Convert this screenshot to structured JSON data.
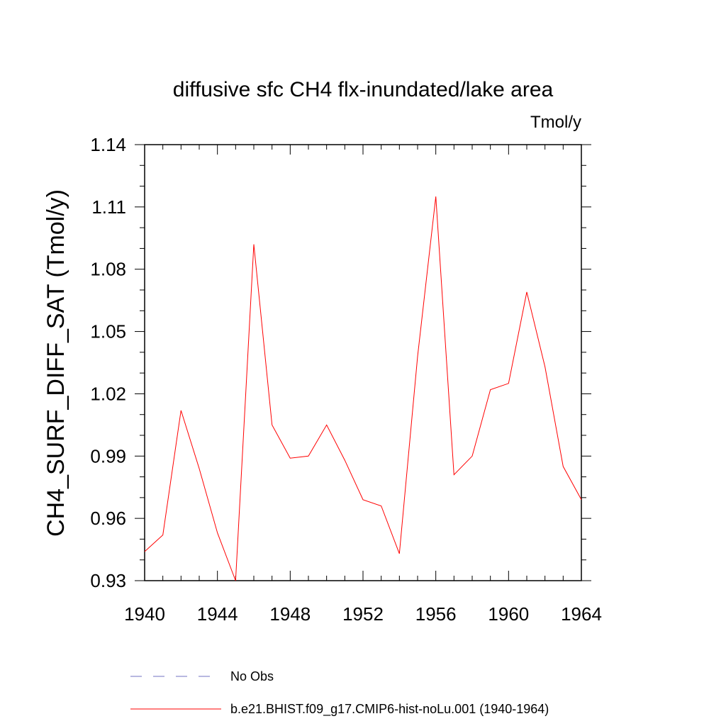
{
  "chart_data": {
    "type": "line",
    "title": "diffusive sfc CH4 flx-inundated/lake area",
    "units_label": "Tmol/y",
    "xlabel": "",
    "ylabel": "CH4_SURF_DIFF_SAT  (Tmol/y)",
    "xlim": [
      1940,
      1964
    ],
    "ylim": [
      0.93,
      1.14
    ],
    "x_ticks": [
      1940,
      1944,
      1948,
      1952,
      1956,
      1960,
      1964
    ],
    "x_tick_labels": [
      "1940",
      "1944",
      "1948",
      "1952",
      "1956",
      "1960",
      "1964"
    ],
    "x_minor_step": 1,
    "y_ticks": [
      0.93,
      0.96,
      0.99,
      1.02,
      1.05,
      1.08,
      1.11,
      1.14
    ],
    "y_tick_labels": [
      "0.93",
      "0.96",
      "0.99",
      "1.02",
      "1.05",
      "1.08",
      "1.11",
      "1.14"
    ],
    "y_minor_step": 0.01,
    "grid": false,
    "legend_position": "bottom",
    "series": [
      {
        "name": "b.e21.BHIST.f09_g17.CMIP6-hist-noLu.001 (1940-1964)",
        "color": "#ff0000",
        "style": "solid",
        "x": [
          1940,
          1941,
          1942,
          1943,
          1944,
          1945,
          1946,
          1947,
          1948,
          1949,
          1950,
          1951,
          1952,
          1953,
          1954,
          1955,
          1956,
          1957,
          1958,
          1959,
          1960,
          1961,
          1962,
          1963,
          1964
        ],
        "values": [
          0.944,
          0.952,
          1.012,
          0.984,
          0.953,
          0.93,
          1.092,
          1.005,
          0.989,
          0.99,
          1.005,
          0.988,
          0.969,
          0.966,
          0.943,
          1.038,
          1.115,
          0.981,
          0.99,
          1.022,
          1.025,
          1.069,
          1.033,
          0.985,
          0.969
        ]
      }
    ],
    "legend": [
      {
        "label": "No Obs",
        "color": "#7070c0",
        "style": "dashed"
      },
      {
        "label": "b.e21.BHIST.f09_g17.CMIP6-hist-noLu.001 (1940-1964)",
        "color": "#ff0000",
        "style": "solid"
      }
    ]
  }
}
